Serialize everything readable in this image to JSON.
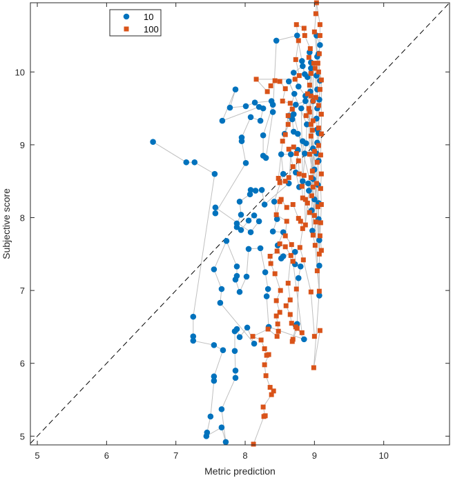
{
  "chart_data": {
    "type": "scatter",
    "xlabel": "Metric prediction",
    "ylabel": "Subjective score",
    "xlim": [
      4.9,
      10.95
    ],
    "ylim": [
      4.88,
      10.95
    ],
    "xticks": [
      5,
      6,
      7,
      8,
      9,
      10
    ],
    "yticks": [
      5,
      6,
      7,
      8,
      9,
      10
    ],
    "grid": false,
    "legend_position": "top-left",
    "reference_line": "y = x (dashed)",
    "connector_color": "#bfbfbf",
    "series": [
      {
        "name": "10",
        "marker": "circle",
        "color": "#0072BD",
        "points": [
          [
            6.67,
            9.04
          ],
          [
            7.15,
            8.76
          ],
          [
            7.27,
            8.76
          ],
          [
            7.56,
            8.6
          ],
          [
            7.25,
            6.64
          ],
          [
            7.25,
            6.37
          ],
          [
            7.25,
            6.31
          ],
          [
            7.55,
            6.25
          ],
          [
            7.68,
            6.18
          ],
          [
            7.55,
            5.82
          ],
          [
            7.55,
            5.76
          ],
          [
            7.5,
            5.27
          ],
          [
            7.45,
            5.05
          ],
          [
            7.44,
            5.0
          ],
          [
            7.66,
            5.12
          ],
          [
            7.72,
            4.92
          ],
          [
            7.66,
            5.37
          ],
          [
            7.86,
            5.8
          ],
          [
            7.86,
            5.9
          ],
          [
            7.85,
            6.17
          ],
          [
            7.85,
            6.44
          ],
          [
            7.88,
            6.47
          ],
          [
            7.92,
            6.36
          ],
          [
            8.03,
            6.49
          ],
          [
            8.13,
            6.27
          ],
          [
            7.64,
            6.83
          ],
          [
            7.66,
            7.02
          ],
          [
            7.55,
            7.29
          ],
          [
            7.73,
            7.68
          ],
          [
            7.88,
            7.33
          ],
          [
            7.88,
            7.2
          ],
          [
            7.86,
            7.15
          ],
          [
            7.92,
            6.98
          ],
          [
            8.02,
            7.19
          ],
          [
            8.05,
            7.57
          ],
          [
            8.22,
            7.58
          ],
          [
            8.29,
            7.25
          ],
          [
            8.33,
            7.02
          ],
          [
            8.31,
            6.92
          ],
          [
            8.34,
            6.5
          ],
          [
            8.85,
            6.33
          ],
          [
            8.73,
            6.52
          ],
          [
            8.75,
            6.54
          ],
          [
            8.77,
            7.17
          ],
          [
            8.8,
            7.33
          ],
          [
            8.72,
            7.36
          ],
          [
            8.72,
            7.53
          ],
          [
            8.55,
            7.47
          ],
          [
            8.52,
            7.44
          ],
          [
            8.47,
            7.62
          ],
          [
            8.55,
            7.8
          ],
          [
            8.4,
            7.81
          ],
          [
            8.46,
            7.98
          ],
          [
            8.42,
            8.22
          ],
          [
            8.55,
            8.6
          ],
          [
            8.52,
            8.87
          ],
          [
            8.66,
            8.87
          ],
          [
            8.63,
            8.47
          ],
          [
            8.28,
            8.18
          ],
          [
            8.24,
            8.38
          ],
          [
            8.15,
            8.37
          ],
          [
            8.08,
            8.38
          ],
          [
            8.07,
            8.32
          ],
          [
            7.92,
            8.22
          ],
          [
            7.94,
            8.04
          ],
          [
            7.88,
            7.92
          ],
          [
            7.88,
            7.87
          ],
          [
            7.94,
            7.83
          ],
          [
            8.05,
            7.96
          ],
          [
            8.13,
            8.03
          ],
          [
            8.2,
            7.95
          ],
          [
            8.08,
            7.8
          ],
          [
            7.57,
            8.14
          ],
          [
            7.57,
            8.06
          ],
          [
            8.01,
            8.75
          ],
          [
            7.95,
            9.05
          ],
          [
            7.95,
            9.1
          ],
          [
            8.08,
            9.38
          ],
          [
            8.22,
            9.33
          ],
          [
            8.26,
            9.5
          ],
          [
            8.2,
            9.52
          ],
          [
            7.67,
            9.33
          ],
          [
            7.86,
            9.76
          ],
          [
            7.78,
            9.51
          ],
          [
            8.01,
            9.53
          ],
          [
            8.14,
            9.58
          ],
          [
            8.38,
            9.6
          ],
          [
            8.4,
            9.55
          ],
          [
            8.26,
            9.13
          ],
          [
            8.26,
            8.85
          ],
          [
            8.3,
            8.82
          ],
          [
            8.4,
            9.45
          ],
          [
            8.45,
            10.43
          ],
          [
            8.75,
            10.5
          ],
          [
            8.82,
            10.15
          ],
          [
            8.86,
            9.97
          ],
          [
            8.83,
            10.08
          ],
          [
            8.7,
            9.99
          ],
          [
            8.77,
            9.8
          ],
          [
            8.87,
            9.67
          ],
          [
            8.87,
            9.6
          ],
          [
            8.73,
            9.55
          ],
          [
            8.68,
            9.35
          ],
          [
            8.7,
            9.18
          ],
          [
            8.76,
            9.15
          ],
          [
            8.83,
            9.05
          ],
          [
            8.86,
            8.88
          ],
          [
            8.76,
            8.93
          ],
          [
            8.73,
            8.62
          ],
          [
            8.78,
            8.42
          ],
          [
            8.91,
            8.47
          ],
          [
            8.92,
            8.37
          ],
          [
            8.98,
            8.53
          ],
          [
            9.0,
            8.66
          ],
          [
            9.03,
            8.88
          ],
          [
            9.04,
            9.03
          ],
          [
            9.04,
            9.21
          ],
          [
            9.03,
            9.36
          ],
          [
            9.04,
            9.5
          ],
          [
            9.04,
            9.76
          ],
          [
            9.03,
            9.95
          ],
          [
            9.04,
            10.21
          ],
          [
            9.03,
            10.5
          ],
          [
            9.08,
            10.37
          ],
          [
            9.06,
            10.25
          ],
          [
            9.08,
            9.88
          ],
          [
            9.07,
            9.62
          ],
          [
            9.06,
            9.16
          ],
          [
            9.06,
            8.78
          ],
          [
            9.05,
            8.45
          ],
          [
            9.06,
            8.2
          ],
          [
            9.06,
            7.98
          ],
          [
            9.07,
            7.69
          ],
          [
            9.07,
            7.34
          ],
          [
            9.07,
            6.93
          ],
          [
            8.9,
            9.93
          ],
          [
            8.95,
            10.13
          ],
          [
            8.98,
            9.6
          ],
          [
            8.98,
            8.95
          ],
          [
            8.96,
            8.1
          ],
          [
            8.97,
            7.82
          ],
          [
            9.0,
            8.25
          ],
          [
            8.7,
            9.42
          ],
          [
            8.57,
            9.15
          ],
          [
            8.63,
            9.4
          ],
          [
            8.71,
            9.7
          ],
          [
            8.63,
            9.87
          ],
          [
            8.89,
            9.28
          ],
          [
            8.88,
            9.02
          ],
          [
            8.83,
            8.5
          ],
          [
            8.81,
            9.5
          ],
          [
            8.94,
            9.73
          ],
          [
            8.95,
            10.05
          ],
          [
            8.93,
            10.27
          ]
        ]
      },
      {
        "name": "100",
        "marker": "square",
        "color": "#D95319",
        "points": [
          [
            8.12,
            4.89
          ],
          [
            8.27,
            5.27
          ],
          [
            8.29,
            5.28
          ],
          [
            8.26,
            5.4
          ],
          [
            8.38,
            5.57
          ],
          [
            8.41,
            5.62
          ],
          [
            8.36,
            5.67
          ],
          [
            8.3,
            5.83
          ],
          [
            8.28,
            5.98
          ],
          [
            8.34,
            6.12
          ],
          [
            8.31,
            6.11
          ],
          [
            8.28,
            6.2
          ],
          [
            8.23,
            6.32
          ],
          [
            8.11,
            6.37
          ],
          [
            8.33,
            6.47
          ],
          [
            8.46,
            6.37
          ],
          [
            8.48,
            6.44
          ],
          [
            8.47,
            6.54
          ],
          [
            8.45,
            6.65
          ],
          [
            8.5,
            6.7
          ],
          [
            8.45,
            6.86
          ],
          [
            8.51,
            7.0
          ],
          [
            8.43,
            7.23
          ],
          [
            8.37,
            7.37
          ],
          [
            8.36,
            7.47
          ],
          [
            8.46,
            7.54
          ],
          [
            8.5,
            7.64
          ],
          [
            8.58,
            7.6
          ],
          [
            8.66,
            7.48
          ],
          [
            8.62,
            7.1
          ],
          [
            8.65,
            6.87
          ],
          [
            8.59,
            6.79
          ],
          [
            8.65,
            6.67
          ],
          [
            8.67,
            6.55
          ],
          [
            8.73,
            6.5
          ],
          [
            8.68,
            6.3
          ],
          [
            8.69,
            6.33
          ],
          [
            8.75,
            6.48
          ],
          [
            8.82,
            6.42
          ],
          [
            8.74,
            7.02
          ],
          [
            8.69,
            7.4
          ],
          [
            8.67,
            7.63
          ],
          [
            8.58,
            7.75
          ],
          [
            8.6,
            7.95
          ],
          [
            8.45,
            8.04
          ],
          [
            8.5,
            8.22
          ],
          [
            8.52,
            8.25
          ],
          [
            8.6,
            8.14
          ],
          [
            8.69,
            8.18
          ],
          [
            8.77,
            7.99
          ],
          [
            8.8,
            7.95
          ],
          [
            8.83,
            7.85
          ],
          [
            8.79,
            7.59
          ],
          [
            8.84,
            7.42
          ],
          [
            8.95,
            6.98
          ],
          [
            9.0,
            6.37
          ],
          [
            9.08,
            6.45
          ],
          [
            8.99,
            5.94
          ],
          [
            9.07,
            6.99
          ],
          [
            9.04,
            7.27
          ],
          [
            9.01,
            7.62
          ],
          [
            8.98,
            7.76
          ],
          [
            9.02,
            7.94
          ],
          [
            8.93,
            8.07
          ],
          [
            8.87,
            8.25
          ],
          [
            8.83,
            8.27
          ],
          [
            8.82,
            8.43
          ],
          [
            8.78,
            8.6
          ],
          [
            8.77,
            8.78
          ],
          [
            8.74,
            8.88
          ],
          [
            8.7,
            8.97
          ],
          [
            8.63,
            8.94
          ],
          [
            8.69,
            8.7
          ],
          [
            8.63,
            8.55
          ],
          [
            8.58,
            8.5
          ],
          [
            8.5,
            8.48
          ],
          [
            8.48,
            8.54
          ],
          [
            8.54,
            9.05
          ],
          [
            8.58,
            9.14
          ],
          [
            8.62,
            9.4
          ],
          [
            8.62,
            9.28
          ],
          [
            8.68,
            9.49
          ],
          [
            8.65,
            9.57
          ],
          [
            8.54,
            9.6
          ],
          [
            8.58,
            9.77
          ],
          [
            8.5,
            9.87
          ],
          [
            8.43,
            9.88
          ],
          [
            8.37,
            9.81
          ],
          [
            8.32,
            9.73
          ],
          [
            8.16,
            9.9
          ],
          [
            8.72,
            9.9
          ],
          [
            8.78,
            9.95
          ],
          [
            8.73,
            10.17
          ],
          [
            8.77,
            10.43
          ],
          [
            8.74,
            10.65
          ],
          [
            8.85,
            10.6
          ],
          [
            8.86,
            10.5
          ],
          [
            8.94,
            10.32
          ],
          [
            8.92,
            10.2
          ],
          [
            8.95,
            9.98
          ],
          [
            8.93,
            9.82
          ],
          [
            8.95,
            9.67
          ],
          [
            8.93,
            9.45
          ],
          [
            8.98,
            9.33
          ],
          [
            8.95,
            9.12
          ],
          [
            9.0,
            8.91
          ],
          [
            8.97,
            8.64
          ],
          [
            8.98,
            8.42
          ],
          [
            8.96,
            8.3
          ],
          [
            9.0,
            8.03
          ],
          [
            9.03,
            8.47
          ],
          [
            9.04,
            8.76
          ],
          [
            9.06,
            8.99
          ],
          [
            9.06,
            9.23
          ],
          [
            9.06,
            9.54
          ],
          [
            9.08,
            9.76
          ],
          [
            9.06,
            10.0
          ],
          [
            9.07,
            10.25
          ],
          [
            9.08,
            10.5
          ],
          [
            9.08,
            10.65
          ],
          [
            9.03,
            10.95
          ],
          [
            9.02,
            10.8
          ],
          [
            9.0,
            10.55
          ],
          [
            9.05,
            10.12
          ],
          [
            9.1,
            9.89
          ],
          [
            9.1,
            9.42
          ],
          [
            9.1,
            9.15
          ],
          [
            9.09,
            8.86
          ],
          [
            9.1,
            8.6
          ],
          [
            9.09,
            8.4
          ],
          [
            9.1,
            8.18
          ],
          [
            9.09,
            7.93
          ],
          [
            9.08,
            7.75
          ],
          [
            9.1,
            7.55
          ],
          [
            8.97,
            9.2
          ],
          [
            8.98,
            9.6
          ],
          [
            8.92,
            9.5
          ],
          [
            8.93,
            8.87
          ],
          [
            9.05,
            8.15
          ],
          [
            9.07,
            7.5
          ],
          [
            8.95,
            9.28
          ],
          [
            8.88,
            9.4
          ],
          [
            8.9,
            9.7
          ],
          [
            9.02,
            9.65
          ],
          [
            9.01,
            10.05
          ],
          [
            8.99,
            10.12
          ],
          [
            8.95,
            8.55
          ],
          [
            8.9,
            8.2
          ],
          [
            8.87,
            7.9
          ],
          [
            8.85,
            8.58
          ]
        ]
      }
    ]
  }
}
